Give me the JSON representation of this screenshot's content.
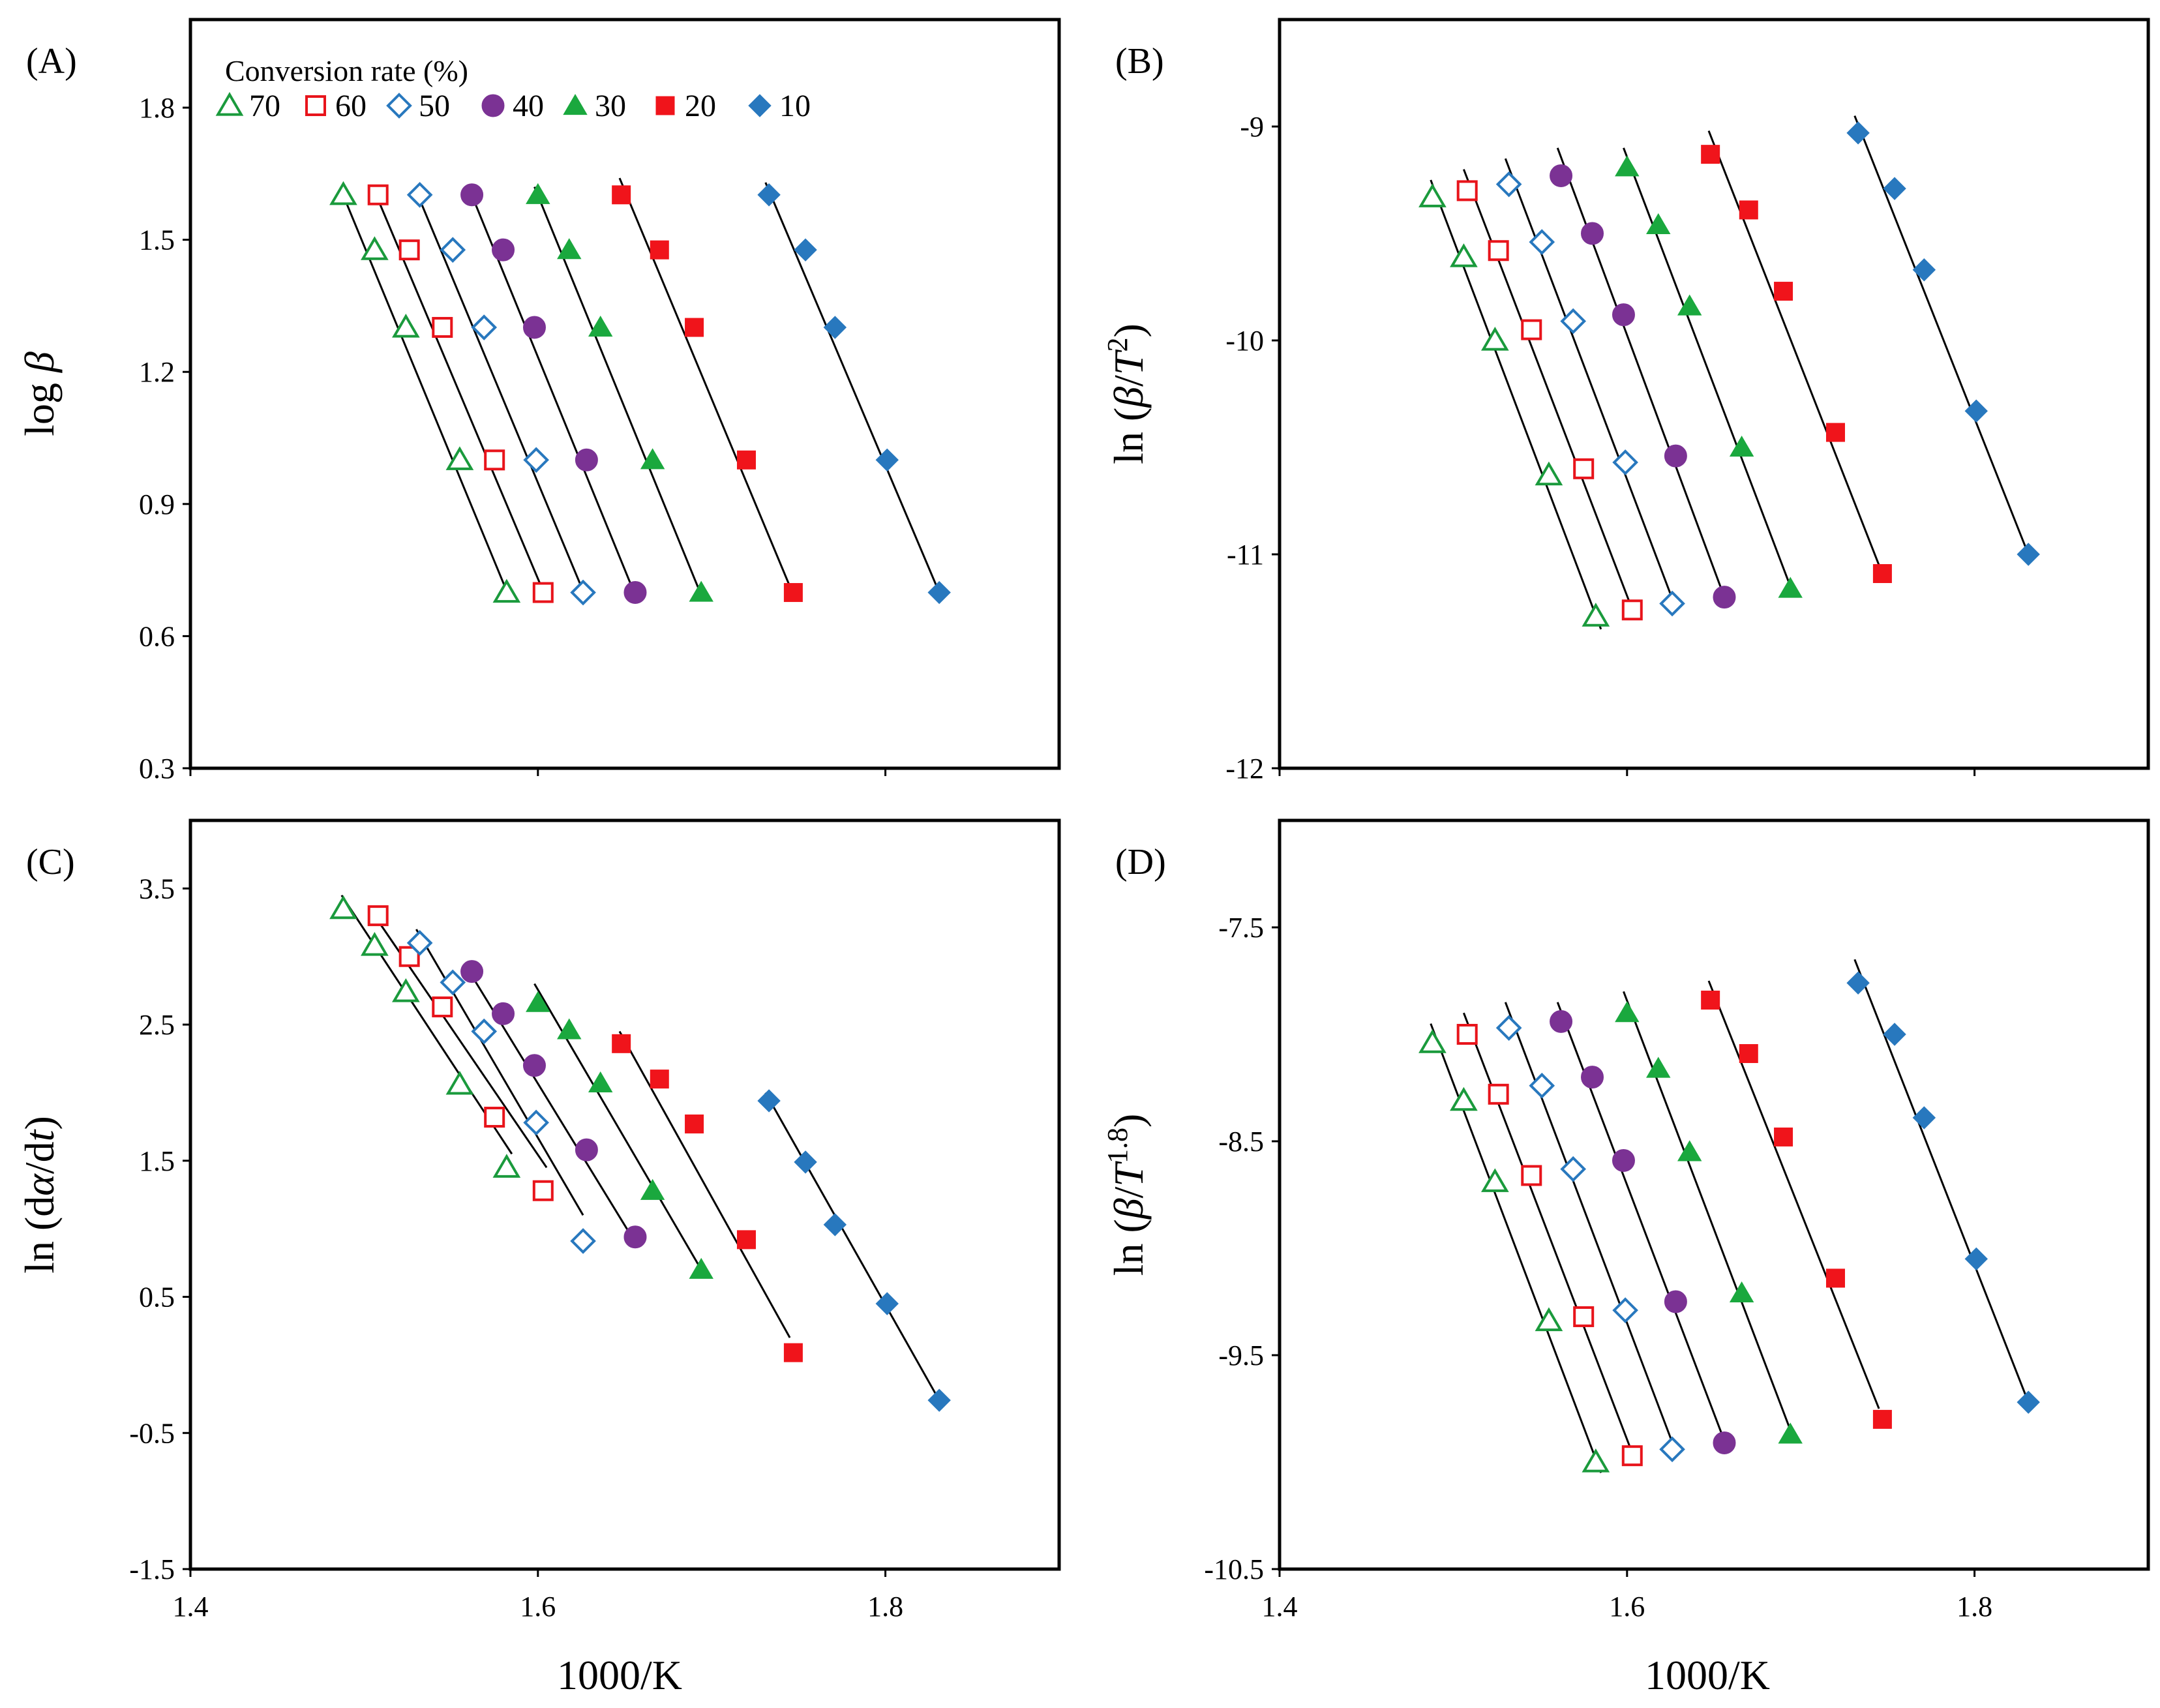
{
  "figure": {
    "x_axis_title": "1000/K",
    "legend_title": "Conversion rate (%)"
  },
  "series_styles": [
    {
      "key": "70",
      "shape": "triangle",
      "filled": false,
      "color": "#1a9a3c"
    },
    {
      "key": "60",
      "shape": "square",
      "filled": false,
      "color": "#e8141b"
    },
    {
      "key": "50",
      "shape": "diamond",
      "filled": false,
      "color": "#2878be"
    },
    {
      "key": "40",
      "shape": "circle",
      "filled": true,
      "color": "#7b3294"
    },
    {
      "key": "30",
      "shape": "triangle",
      "filled": true,
      "color": "#1aa83e"
    },
    {
      "key": "20",
      "shape": "square",
      "filled": true,
      "color": "#f0141b"
    },
    {
      "key": "10",
      "shape": "diamond",
      "filled": true,
      "color": "#2878be"
    }
  ],
  "chart_data": [
    {
      "type": "scatter",
      "panel": "(A)",
      "ylabel_parts": [
        {
          "t": "log "
        },
        {
          "t": "β",
          "i": true
        }
      ],
      "xlim": [
        1.4,
        1.9
      ],
      "ylim": [
        0.3,
        2.0
      ],
      "xticks": [
        "1.4",
        "1.6",
        "1.8"
      ],
      "xtick_values": [
        1.4,
        1.6,
        1.8
      ],
      "yticks": [
        "0.3",
        "0.6",
        "0.9",
        "1.2",
        "1.5",
        "1.8"
      ],
      "ytick_values": [
        0.3,
        0.6,
        0.9,
        1.2,
        1.5,
        1.8
      ],
      "show_xticks": false,
      "legend": true,
      "series": [
        {
          "name": "70",
          "x": [
            1.488,
            1.506,
            1.524,
            1.555,
            1.582
          ],
          "y": [
            1.602,
            1.477,
            1.301,
            1.0,
            0.699
          ],
          "line": [
            [
              1.487,
              1.61
            ],
            [
              1.583,
              0.693
            ]
          ]
        },
        {
          "name": "60",
          "x": [
            1.508,
            1.526,
            1.545,
            1.575,
            1.603
          ],
          "y": [
            1.602,
            1.477,
            1.301,
            1.0,
            0.699
          ],
          "line": [
            [
              1.506,
              1.61
            ],
            [
              1.604,
              0.693
            ]
          ]
        },
        {
          "name": "50",
          "x": [
            1.532,
            1.551,
            1.569,
            1.599,
            1.626
          ],
          "y": [
            1.602,
            1.477,
            1.301,
            1.0,
            0.699
          ],
          "line": [
            [
              1.53,
              1.61
            ],
            [
              1.627,
              0.693
            ]
          ]
        },
        {
          "name": "40",
          "x": [
            1.562,
            1.58,
            1.598,
            1.628,
            1.656
          ],
          "y": [
            1.602,
            1.477,
            1.301,
            1.0,
            0.699
          ],
          "line": [
            [
              1.56,
              1.62
            ],
            [
              1.656,
              0.693
            ]
          ]
        },
        {
          "name": "30",
          "x": [
            1.6,
            1.618,
            1.636,
            1.666,
            1.694
          ],
          "y": [
            1.602,
            1.477,
            1.301,
            1.0,
            0.699
          ],
          "line": [
            [
              1.598,
              1.62
            ],
            [
              1.694,
              0.693
            ]
          ]
        },
        {
          "name": "20",
          "x": [
            1.648,
            1.67,
            1.69,
            1.72,
            1.747
          ],
          "y": [
            1.602,
            1.477,
            1.301,
            1.0,
            0.699
          ],
          "line": [
            [
              1.647,
              1.64
            ],
            [
              1.745,
              0.713
            ]
          ]
        },
        {
          "name": "10",
          "x": [
            1.733,
            1.754,
            1.771,
            1.801,
            1.831
          ],
          "y": [
            1.602,
            1.477,
            1.301,
            1.0,
            0.699
          ],
          "line": [
            [
              1.731,
              1.63
            ],
            [
              1.831,
              0.699
            ]
          ]
        }
      ]
    },
    {
      "type": "scatter",
      "panel": "(B)",
      "ylabel_parts": [
        {
          "t": "ln ("
        },
        {
          "t": "β",
          "i": true
        },
        {
          "t": "/"
        },
        {
          "t": "T",
          "i": true
        },
        {
          "t": "2",
          "sup": true
        },
        {
          "t": ")"
        }
      ],
      "xlim": [
        1.4,
        1.9
      ],
      "ylim": [
        -12,
        -8.5
      ],
      "xticks": [
        "1.4",
        "1.6",
        "1.8"
      ],
      "xtick_values": [
        1.4,
        1.6,
        1.8
      ],
      "yticks": [
        "-12",
        "-11",
        "-10",
        "-9"
      ],
      "ytick_values": [
        -12,
        -11,
        -10,
        -9
      ],
      "show_xticks": false,
      "legend": false,
      "series": [
        {
          "name": "70",
          "x": [
            1.488,
            1.506,
            1.524,
            1.555,
            1.582
          ],
          "y": [
            -9.33,
            -9.61,
            -10.0,
            -10.63,
            -11.29
          ],
          "line": [
            [
              1.487,
              -9.25
            ],
            [
              1.585,
              -11.35
            ]
          ]
        },
        {
          "name": "60",
          "x": [
            1.508,
            1.526,
            1.545,
            1.575,
            1.603
          ],
          "y": [
            -9.3,
            -9.58,
            -9.95,
            -10.6,
            -11.26
          ],
          "line": [
            [
              1.506,
              -9.2
            ],
            [
              1.605,
              -11.3
            ]
          ]
        },
        {
          "name": "50",
          "x": [
            1.532,
            1.551,
            1.569,
            1.599,
            1.626
          ],
          "y": [
            -9.27,
            -9.54,
            -9.91,
            -10.57,
            -11.23
          ],
          "line": [
            [
              1.53,
              -9.15
            ],
            [
              1.628,
              -11.25
            ]
          ]
        },
        {
          "name": "40",
          "x": [
            1.562,
            1.58,
            1.598,
            1.628,
            1.656
          ],
          "y": [
            -9.23,
            -9.5,
            -9.88,
            -10.54,
            -11.2
          ],
          "line": [
            [
              1.56,
              -9.1
            ],
            [
              1.656,
              -11.2
            ]
          ]
        },
        {
          "name": "30",
          "x": [
            1.6,
            1.618,
            1.636,
            1.666,
            1.694
          ],
          "y": [
            -9.19,
            -9.46,
            -9.84,
            -10.5,
            -11.16
          ],
          "line": [
            [
              1.598,
              -9.1
            ],
            [
              1.694,
              -11.15
            ]
          ]
        },
        {
          "name": "20",
          "x": [
            1.648,
            1.67,
            1.69,
            1.72,
            1.747
          ],
          "y": [
            -9.13,
            -9.39,
            -9.77,
            -10.43,
            -11.09
          ],
          "line": [
            [
              1.647,
              -9.02
            ],
            [
              1.745,
              -11.05
            ]
          ]
        },
        {
          "name": "10",
          "x": [
            1.733,
            1.754,
            1.771,
            1.801,
            1.831
          ],
          "y": [
            -9.03,
            -9.29,
            -9.67,
            -10.33,
            -11.0
          ],
          "line": [
            [
              1.731,
              -8.95
            ],
            [
              1.831,
              -11.0
            ]
          ]
        }
      ]
    },
    {
      "type": "scatter",
      "panel": "(C)",
      "ylabel_parts": [
        {
          "t": "ln (d"
        },
        {
          "t": "α",
          "i": true
        },
        {
          "t": "/d"
        },
        {
          "t": "t",
          "i": true
        },
        {
          "t": ")"
        }
      ],
      "xlim": [
        1.4,
        1.9
      ],
      "ylim": [
        -1.5,
        4.0
      ],
      "xticks": [
        "1.4",
        "1.6",
        "1.8"
      ],
      "xtick_values": [
        1.4,
        1.6,
        1.8
      ],
      "yticks": [
        "-1.5",
        "-0.5",
        "0.5",
        "1.5",
        "2.5",
        "3.5"
      ],
      "ytick_values": [
        -1.5,
        -0.5,
        0.5,
        1.5,
        2.5,
        3.5
      ],
      "show_xticks": true,
      "legend": false,
      "series": [
        {
          "name": "70",
          "x": [
            1.488,
            1.506,
            1.524,
            1.555,
            1.582
          ],
          "y": [
            3.35,
            3.08,
            2.74,
            2.06,
            1.45
          ],
          "line": [
            [
              1.487,
              3.45
            ],
            [
              1.585,
              1.55
            ]
          ]
        },
        {
          "name": "60",
          "x": [
            1.508,
            1.526,
            1.545,
            1.575,
            1.603
          ],
          "y": [
            3.3,
            3.0,
            2.63,
            1.82,
            1.28
          ],
          "line": [
            [
              1.506,
              3.3
            ],
            [
              1.605,
              1.45
            ]
          ]
        },
        {
          "name": "50",
          "x": [
            1.532,
            1.551,
            1.569,
            1.599,
            1.626
          ],
          "y": [
            3.1,
            2.81,
            2.45,
            1.78,
            0.91
          ],
          "line": [
            [
              1.53,
              3.2
            ],
            [
              1.626,
              1.1
            ]
          ]
        },
        {
          "name": "40",
          "x": [
            1.562,
            1.58,
            1.598,
            1.628,
            1.656
          ],
          "y": [
            2.89,
            2.58,
            2.2,
            1.58,
            0.94
          ],
          "line": [
            [
              1.56,
              2.9
            ],
            [
              1.656,
              0.9
            ]
          ]
        },
        {
          "name": "30",
          "x": [
            1.6,
            1.618,
            1.636,
            1.666,
            1.694
          ],
          "y": [
            2.66,
            2.46,
            2.07,
            1.28,
            0.7
          ],
          "line": [
            [
              1.598,
              2.8
            ],
            [
              1.694,
              0.7
            ]
          ]
        },
        {
          "name": "20",
          "x": [
            1.648,
            1.67,
            1.69,
            1.72,
            1.747
          ],
          "y": [
            2.36,
            2.1,
            1.77,
            0.92,
            0.09
          ],
          "line": [
            [
              1.647,
              2.45
            ],
            [
              1.745,
              0.2
            ]
          ]
        },
        {
          "name": "10",
          "x": [
            1.733,
            1.754,
            1.771,
            1.801,
            1.831
          ],
          "y": [
            1.94,
            1.49,
            1.03,
            0.45,
            -0.26
          ],
          "line": [
            [
              1.731,
              2.0
            ],
            [
              1.831,
              -0.26
            ]
          ]
        }
      ]
    },
    {
      "type": "scatter",
      "panel": "(D)",
      "ylabel_parts": [
        {
          "t": "ln ("
        },
        {
          "t": "β",
          "i": true
        },
        {
          "t": "/"
        },
        {
          "t": "T",
          "i": true
        },
        {
          "t": "1.8",
          "sup": true
        },
        {
          "t": ")"
        }
      ],
      "xlim": [
        1.4,
        1.9
      ],
      "ylim": [
        -10.5,
        -7.0
      ],
      "xticks": [
        "1.4",
        "1.6",
        "1.8"
      ],
      "xtick_values": [
        1.4,
        1.6,
        1.8
      ],
      "yticks": [
        "-10.5",
        "-9.5",
        "-8.5",
        "-7.5"
      ],
      "ytick_values": [
        -10.5,
        -9.5,
        -8.5,
        -7.5
      ],
      "show_xticks": true,
      "legend": false,
      "series": [
        {
          "name": "70",
          "x": [
            1.488,
            1.506,
            1.524,
            1.555,
            1.582
          ],
          "y": [
            -8.04,
            -8.31,
            -8.69,
            -9.34,
            -10.0
          ],
          "line": [
            [
              1.487,
              -7.95
            ],
            [
              1.585,
              -10.05
            ]
          ]
        },
        {
          "name": "60",
          "x": [
            1.508,
            1.526,
            1.545,
            1.575,
            1.603
          ],
          "y": [
            -8.0,
            -8.28,
            -8.66,
            -9.32,
            -9.97
          ],
          "line": [
            [
              1.506,
              -7.9
            ],
            [
              1.605,
              -10.0
            ]
          ]
        },
        {
          "name": "50",
          "x": [
            1.532,
            1.551,
            1.569,
            1.599,
            1.626
          ],
          "y": [
            -7.97,
            -8.24,
            -8.63,
            -9.29,
            -9.94
          ],
          "line": [
            [
              1.53,
              -7.85
            ],
            [
              1.628,
              -9.95
            ]
          ]
        },
        {
          "name": "40",
          "x": [
            1.562,
            1.58,
            1.598,
            1.628,
            1.656
          ],
          "y": [
            -7.94,
            -8.2,
            -8.59,
            -9.25,
            -9.91
          ],
          "line": [
            [
              1.56,
              -7.85
            ],
            [
              1.656,
              -9.9
            ]
          ]
        },
        {
          "name": "30",
          "x": [
            1.6,
            1.618,
            1.636,
            1.666,
            1.694
          ],
          "y": [
            -7.9,
            -8.16,
            -8.55,
            -9.21,
            -9.87
          ],
          "line": [
            [
              1.598,
              -7.8
            ],
            [
              1.694,
              -9.85
            ]
          ]
        },
        {
          "name": "20",
          "x": [
            1.648,
            1.67,
            1.69,
            1.72,
            1.747
          ],
          "y": [
            -7.84,
            -8.09,
            -8.48,
            -9.14,
            -9.8
          ],
          "line": [
            [
              1.647,
              -7.75
            ],
            [
              1.745,
              -9.75
            ]
          ]
        },
        {
          "name": "10",
          "x": [
            1.733,
            1.754,
            1.771,
            1.801,
            1.831
          ],
          "y": [
            -7.76,
            -8.0,
            -8.39,
            -9.05,
            -9.72
          ],
          "line": [
            [
              1.731,
              -7.65
            ],
            [
              1.831,
              -9.72
            ]
          ]
        }
      ]
    }
  ]
}
